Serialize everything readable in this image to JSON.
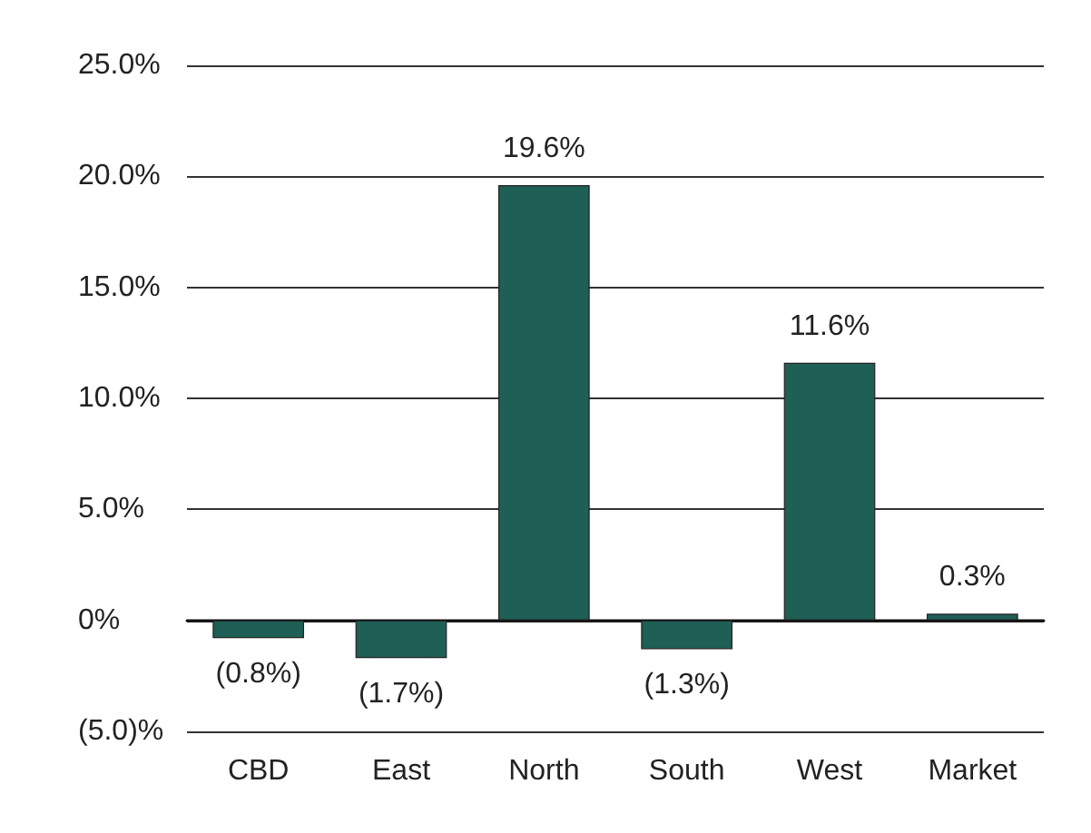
{
  "chart_data": {
    "type": "bar",
    "categories": [
      "CBD",
      "East",
      "North",
      "South",
      "West",
      "Market"
    ],
    "values": [
      -0.8,
      -1.7,
      19.6,
      -1.3,
      11.6,
      0.3
    ],
    "value_labels": [
      "(0.8%)",
      "(1.7%)",
      "19.6%",
      "(1.3%)",
      "11.6%",
      "0.3%"
    ],
    "color": "#1e5f56",
    "ylim": [
      -5,
      25
    ],
    "yticks": [
      {
        "value": -5,
        "label": "(5.0)%"
      },
      {
        "value": 0,
        "label": "0%"
      },
      {
        "value": 5,
        "label": "5.0%"
      },
      {
        "value": 10,
        "label": "10.0%"
      },
      {
        "value": 15,
        "label": "15.0%"
      },
      {
        "value": 20,
        "label": "20.0%"
      },
      {
        "value": 25,
        "label": "25.0%"
      }
    ],
    "grid": "y"
  }
}
